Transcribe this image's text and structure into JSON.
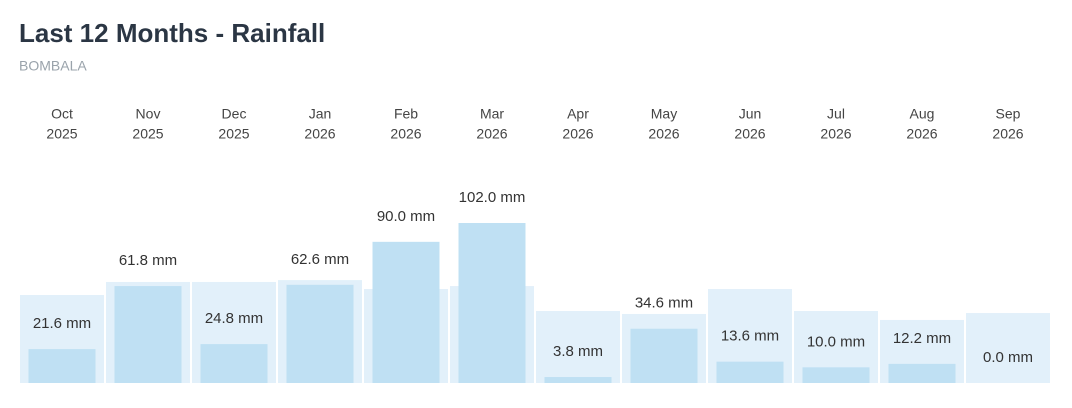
{
  "chart_data": {
    "type": "bar",
    "title": "Last 12 Months - Rainfall",
    "subtitle": "BOMBALA",
    "categories": [
      [
        "Oct",
        "2025"
      ],
      [
        "Nov",
        "2025"
      ],
      [
        "Dec",
        "2025"
      ],
      [
        "Jan",
        "2026"
      ],
      [
        "Feb",
        "2026"
      ],
      [
        "Mar",
        "2026"
      ],
      [
        "Apr",
        "2026"
      ],
      [
        "May",
        "2026"
      ],
      [
        "Jun",
        "2026"
      ],
      [
        "Jul",
        "2026"
      ],
      [
        "Aug",
        "2026"
      ],
      [
        "Sep",
        "2026"
      ]
    ],
    "series": [
      {
        "color": "#bfe0f3",
        "values": [
          21.6,
          61.8,
          24.8,
          62.6,
          90.0,
          102.0,
          3.8,
          34.6,
          13.6,
          10.0,
          12.2,
          0.0
        ],
        "value_labels": [
          "21.6 mm",
          "61.8 mm",
          "24.8 mm",
          "62.6 mm",
          "90.0 mm",
          "102.0 mm",
          "3.8 mm",
          "34.6 mm",
          "13.6 mm",
          "10.0 mm",
          "12.2 mm",
          "0.0 mm"
        ]
      },
      {
        "color": "#e2f0fa",
        "values": [
          56.1,
          64.4,
          64.4,
          65.6,
          59.9,
          61.8,
          45.9,
          44.0,
          59.9,
          45.9,
          40.2,
          44.6
        ]
      }
    ]
  }
}
